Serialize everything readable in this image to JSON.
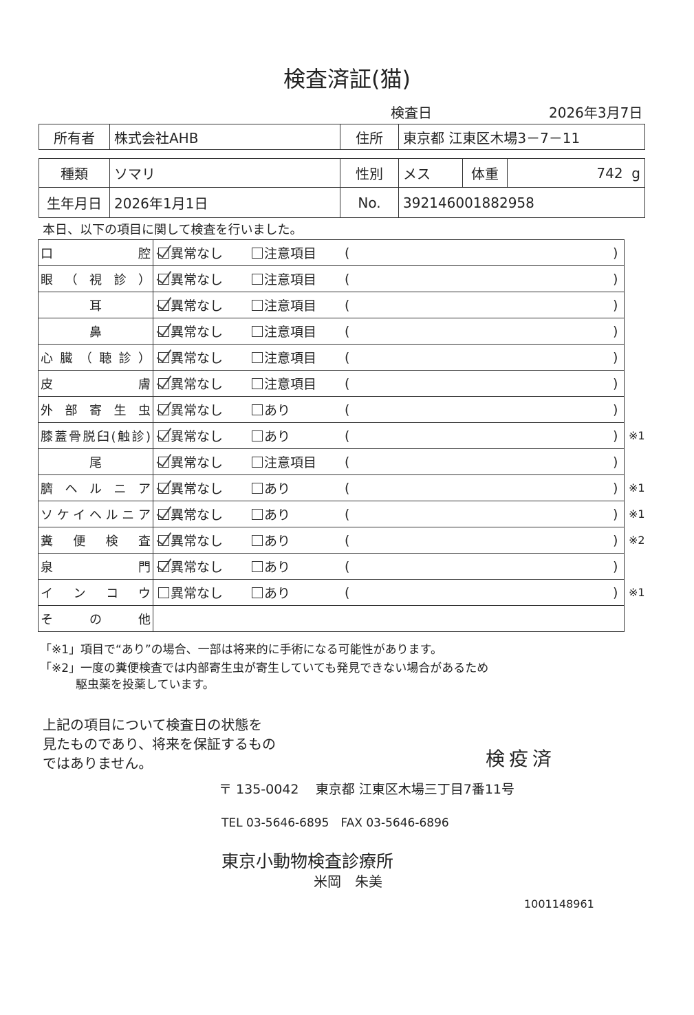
{
  "title": "検査済証(猫)",
  "inspection": {
    "label": "検査日",
    "date": "2026年3月7日"
  },
  "owner": {
    "label": "所有者",
    "value": "株式会社AHB",
    "address_label": "住所",
    "address": "東京都 江東区木場3－7－11"
  },
  "pet": {
    "type_label": "種類",
    "type": "ソマリ",
    "sex_label": "性別",
    "sex": "メス",
    "weight_label": "体重",
    "weight": "742",
    "weight_unit": "g",
    "birth_label": "生年月日",
    "birth": "2026年1月1日",
    "no_label": "No.",
    "no": "392146001882958"
  },
  "intro": "本日、以下の項目に関して検査を行いました。",
  "check_rows": [
    {
      "label": "口腔",
      "normal": "異常なし",
      "normal_checked": true,
      "other": "注意項目",
      "note": ""
    },
    {
      "label": "眼（視診）",
      "normal": "異常なし",
      "normal_checked": true,
      "other": "注意項目",
      "note": ""
    },
    {
      "label": "耳",
      "normal": "異常なし",
      "normal_checked": true,
      "other": "注意項目",
      "note": ""
    },
    {
      "label": "鼻",
      "normal": "異常なし",
      "normal_checked": true,
      "other": "注意項目",
      "note": ""
    },
    {
      "label": "心臓（聴診）",
      "normal": "異常なし",
      "normal_checked": true,
      "other": "注意項目",
      "note": ""
    },
    {
      "label": "皮膚",
      "normal": "異常なし",
      "normal_checked": true,
      "other": "注意項目",
      "note": ""
    },
    {
      "label": "外部寄生虫",
      "normal": "異常なし",
      "normal_checked": true,
      "other": "あり",
      "note": ""
    },
    {
      "label": "膝蓋骨脱臼(触診)",
      "normal": "異常なし",
      "normal_checked": true,
      "other": "あり",
      "note": "※1"
    },
    {
      "label": "尾",
      "normal": "異常なし",
      "normal_checked": true,
      "other": "注意項目",
      "note": ""
    },
    {
      "label": "臍ヘルニア",
      "normal": "異常なし",
      "normal_checked": true,
      "other": "あり",
      "note": "※1"
    },
    {
      "label": "ソケイヘルニア",
      "normal": "異常なし",
      "normal_checked": true,
      "other": "あり",
      "note": "※1"
    },
    {
      "label": "糞便検査",
      "normal": "異常なし",
      "normal_checked": true,
      "other": "あり",
      "note": "※2"
    },
    {
      "label": "泉門",
      "normal": "異常なし",
      "normal_checked": true,
      "other": "あり",
      "note": ""
    },
    {
      "label": "インコウ",
      "normal": "異常なし",
      "normal_checked": false,
      "other": "あり",
      "note": "※1"
    }
  ],
  "other_row_label": "その他",
  "footnotes": {
    "n1": "「※1」項目で“あり”の場合、一部は将来的に手術になる可能性があります。",
    "n2a": "「※2」一度の糞便検査では内部寄生虫が寄生していても発見できない場合があるため",
    "n2b": "駆虫薬を投薬しています。"
  },
  "disclaimer": {
    "l1": "上記の項目について検査日の状態を",
    "l2": "見たものであり、将来を保証するもの",
    "l3": "ではありません。"
  },
  "stamp": "検疫済",
  "clinic": {
    "postal": "〒 135-0042",
    "address": "東京都 江東区木場三丁目7番11号",
    "tel": "TEL 03-5646-6895　FAX 03-5646-6896",
    "name": "東京小動物検査診療所",
    "vet": "米岡　朱美"
  },
  "doc_number": "1001148961"
}
